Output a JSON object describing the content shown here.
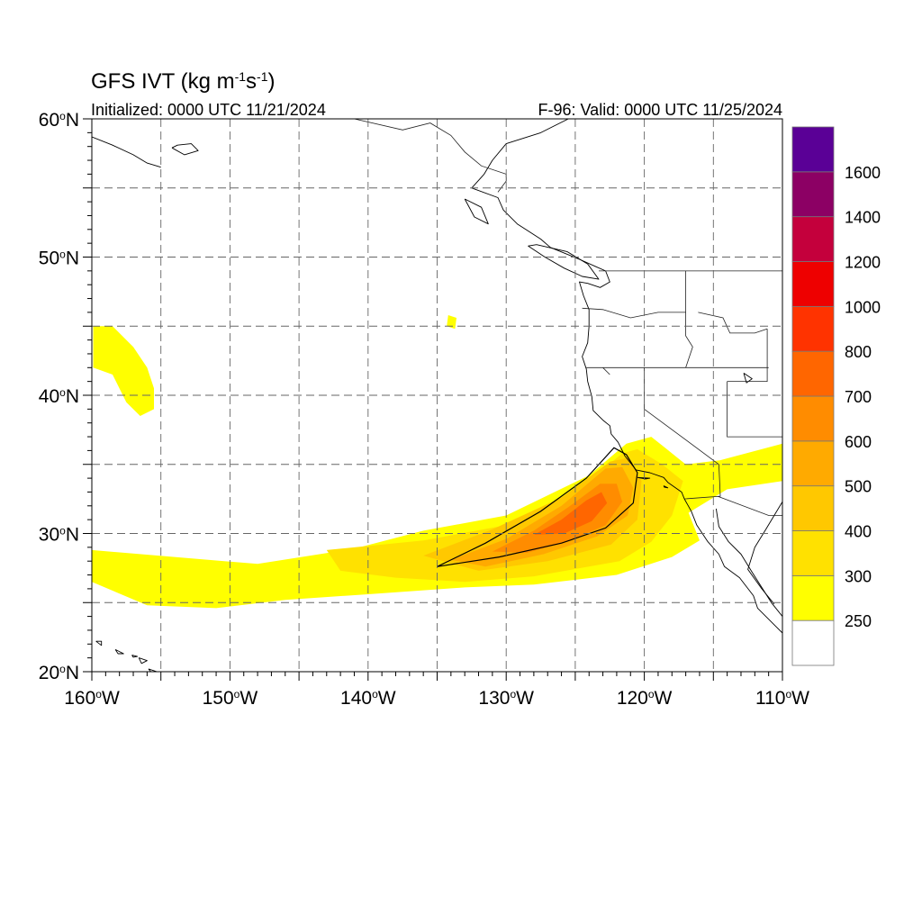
{
  "title": {
    "main": "GFS IVT (kg m",
    "sup1": "-1",
    "mid": "s",
    "sup2": "-1",
    "end": ")"
  },
  "subtitle_left": "Initialized: 0000 UTC 11/21/2024",
  "subtitle_right": "F-96: Valid: 0000 UTC 11/25/2024",
  "lat_ticks": [
    {
      "value": 60,
      "label": "60",
      "hemi": "N"
    },
    {
      "value": 50,
      "label": "50",
      "hemi": "N"
    },
    {
      "value": 40,
      "label": "40",
      "hemi": "N"
    },
    {
      "value": 30,
      "label": "30",
      "hemi": "N"
    },
    {
      "value": 20,
      "label": "20",
      "hemi": "N"
    }
  ],
  "lon_ticks": [
    {
      "value": -160,
      "label": "160",
      "hemi": "W"
    },
    {
      "value": -150,
      "label": "150",
      "hemi": "W"
    },
    {
      "value": -140,
      "label": "140",
      "hemi": "W"
    },
    {
      "value": -130,
      "label": "130",
      "hemi": "W"
    },
    {
      "value": -120,
      "label": "120",
      "hemi": "W"
    },
    {
      "value": -110,
      "label": "110",
      "hemi": "W"
    }
  ],
  "map_extent": {
    "lon_min": -160,
    "lon_max": -110,
    "lat_min": 20,
    "lat_max": 60
  },
  "colorbar": {
    "levels": [
      "250",
      "300",
      "400",
      "500",
      "600",
      "700",
      "800",
      "1000",
      "1200",
      "1400",
      "1600"
    ],
    "colors": [
      "#ffffff",
      "#ffff00",
      "#ffe100",
      "#ffc800",
      "#ffaa00",
      "#ff8c00",
      "#ff6600",
      "#ff3300",
      "#ee0000",
      "#c4003c",
      "#8c0064",
      "#5a0096"
    ]
  },
  "ivt_regions": [
    {
      "level": 1,
      "poly": [
        [
          -159.9,
          45
        ],
        [
          -158.5,
          45
        ],
        [
          -157,
          43.5
        ],
        [
          -156,
          42
        ],
        [
          -155.5,
          40.5
        ],
        [
          -155.5,
          39
        ],
        [
          -156.5,
          38.5
        ],
        [
          -157.5,
          39.5
        ],
        [
          -158.5,
          41.5
        ],
        [
          -159.9,
          42
        ]
      ]
    },
    {
      "level": 1,
      "poly": [
        [
          -134.2,
          45.8
        ],
        [
          -133.6,
          45.6
        ],
        [
          -133.7,
          44.8
        ],
        [
          -134.3,
          45
        ]
      ]
    },
    {
      "level": 1,
      "poly": [
        [
          -160,
          28.8
        ],
        [
          -154,
          28.3
        ],
        [
          -148,
          27.8
        ],
        [
          -141,
          28.9
        ],
        [
          -136,
          30.2
        ],
        [
          -130,
          31.3
        ],
        [
          -124,
          34.2
        ],
        [
          -121.3,
          36.5
        ],
        [
          -119.5,
          37
        ],
        [
          -118.5,
          36.2
        ],
        [
          -117,
          35
        ],
        [
          -114.5,
          35.3
        ],
        [
          -110,
          36.5
        ],
        [
          -110,
          33.8
        ],
        [
          -114,
          33.2
        ],
        [
          -116.8,
          31.5
        ],
        [
          -116,
          29.5
        ],
        [
          -118,
          28.3
        ],
        [
          -122,
          27
        ],
        [
          -128,
          26.3
        ],
        [
          -133,
          26.1
        ],
        [
          -140,
          25.6
        ],
        [
          -146,
          25.2
        ],
        [
          -151,
          24.6
        ],
        [
          -156,
          24.8
        ],
        [
          -160,
          26.5
        ]
      ]
    },
    {
      "level": 2,
      "poly": [
        [
          -143,
          28.8
        ],
        [
          -136,
          29.5
        ],
        [
          -130,
          30.6
        ],
        [
          -124.5,
          33.4
        ],
        [
          -121.6,
          35.8
        ],
        [
          -120.5,
          36.1
        ],
        [
          -118.7,
          35
        ],
        [
          -117.2,
          33.8
        ],
        [
          -118,
          31.3
        ],
        [
          -119.5,
          29.4
        ],
        [
          -121.8,
          28
        ],
        [
          -128,
          26.9
        ],
        [
          -133,
          26.5
        ],
        [
          -138,
          26.8
        ],
        [
          -142,
          27.3
        ]
      ]
    },
    {
      "level": 3,
      "poly": [
        [
          -136,
          28.4
        ],
        [
          -131,
          30.3
        ],
        [
          -126,
          32.6
        ],
        [
          -122.5,
          35.2
        ],
        [
          -121.1,
          35.5
        ],
        [
          -120.2,
          33.8
        ],
        [
          -120.5,
          31
        ],
        [
          -122.4,
          29.2
        ],
        [
          -127,
          28
        ],
        [
          -132,
          27.3
        ]
      ]
    },
    {
      "level": 4,
      "poly": [
        [
          -134,
          28.1
        ],
        [
          -130,
          29.6
        ],
        [
          -126,
          32
        ],
        [
          -122.8,
          34.7
        ],
        [
          -121.6,
          34.8
        ],
        [
          -120.8,
          33.3
        ],
        [
          -121.2,
          31.3
        ],
        [
          -123.4,
          29.8
        ],
        [
          -127.3,
          28.5
        ],
        [
          -131.5,
          27.6
        ]
      ]
    },
    {
      "level": 5,
      "poly": [
        [
          -131,
          28.7
        ],
        [
          -128,
          30.2
        ],
        [
          -125.5,
          31.9
        ],
        [
          -123.2,
          33.6
        ],
        [
          -122,
          33.6
        ],
        [
          -121.6,
          32.3
        ],
        [
          -122.8,
          30.6
        ],
        [
          -125.6,
          29.4
        ],
        [
          -128.5,
          28.6
        ]
      ]
    },
    {
      "level": 6,
      "poly": [
        [
          -128,
          29.9
        ],
        [
          -126,
          31
        ],
        [
          -124.2,
          32.4
        ],
        [
          -123.1,
          33
        ],
        [
          -122.7,
          32.2
        ],
        [
          -123.8,
          30.9
        ],
        [
          -125.8,
          30
        ]
      ]
    }
  ],
  "ivt_contour_500": [
    [
      -135,
      27.6
    ],
    [
      -131.5,
      29.3
    ],
    [
      -127.5,
      31.6
    ],
    [
      -124.2,
      34
    ],
    [
      -122.2,
      36.2
    ],
    [
      -121.3,
      35.7
    ],
    [
      -120.5,
      34.4
    ],
    [
      -120.8,
      32.2
    ],
    [
      -122.8,
      30.4
    ],
    [
      -126,
      29.3
    ],
    [
      -130.5,
      28.3
    ],
    [
      -135,
      27.6
    ]
  ],
  "coastlines": [
    [
      [
        -125.5,
        60
      ],
      [
        -127.5,
        59
      ],
      [
        -130,
        58.2
      ],
      [
        -131,
        57
      ],
      [
        -131.6,
        56
      ],
      [
        -132.5,
        55
      ],
      [
        -130.6,
        54.3
      ],
      [
        -130.2,
        53.4
      ],
      [
        -129.2,
        52.4
      ],
      [
        -127.5,
        51.3
      ],
      [
        -126.8,
        50.7
      ],
      [
        -124.6,
        49.8
      ],
      [
        -123.5,
        49.3
      ],
      [
        -122.8,
        49
      ],
      [
        -122.5,
        48.2
      ],
      [
        -123.2,
        47.8
      ],
      [
        -124.1,
        48.1
      ],
      [
        -124.7,
        48.2
      ],
      [
        -124.4,
        47.2
      ],
      [
        -124,
        46.2
      ],
      [
        -124,
        45
      ],
      [
        -124.1,
        43.8
      ],
      [
        -124.5,
        42.8
      ],
      [
        -124.2,
        41.9
      ],
      [
        -124.1,
        41
      ],
      [
        -123.8,
        39.9
      ],
      [
        -123.7,
        38.9
      ],
      [
        -123,
        38.2
      ],
      [
        -122.5,
        37.8
      ],
      [
        -122.4,
        37.2
      ],
      [
        -121.9,
        36.6
      ],
      [
        -121.4,
        35.6
      ],
      [
        -120.6,
        34.6
      ],
      [
        -119.6,
        34.4
      ],
      [
        -118.6,
        34.05
      ],
      [
        -118.3,
        33.7
      ],
      [
        -117.3,
        33.0
      ],
      [
        -117.1,
        32.5
      ],
      [
        -116.6,
        31.6
      ],
      [
        -116.2,
        30.6
      ],
      [
        -115.4,
        29.4
      ],
      [
        -114.6,
        28.5
      ],
      [
        -114.2,
        27.6
      ],
      [
        -113.1,
        26.8
      ],
      [
        -112.1,
        25.5
      ],
      [
        -111.8,
        24.6
      ],
      [
        -110.4,
        23.2
      ],
      [
        -110,
        22.8
      ]
    ],
    [
      [
        -114.8,
        31.8
      ],
      [
        -114.6,
        30.5
      ],
      [
        -113.9,
        29.4
      ],
      [
        -113,
        28.5
      ],
      [
        -112.2,
        27.2
      ],
      [
        -111.5,
        26.1
      ],
      [
        -110.8,
        25
      ],
      [
        -110,
        24
      ]
    ],
    [
      [
        -110,
        32.3
      ],
      [
        -111.2,
        30.3
      ],
      [
        -112,
        29
      ],
      [
        -112.5,
        27.4
      ],
      [
        -111.5,
        26
      ],
      [
        -110.6,
        24.9
      ]
    ],
    [
      [
        -160,
        58.7
      ],
      [
        -158.5,
        58.1
      ],
      [
        -157,
        57.4
      ],
      [
        -156,
        56.8
      ],
      [
        -155,
        56.5
      ]
    ],
    [
      [
        -154.2,
        57.9
      ],
      [
        -153.3,
        57.4
      ],
      [
        -152.3,
        57.7
      ],
      [
        -152.8,
        58.2
      ],
      [
        -153.8,
        58.1
      ],
      [
        -154.2,
        57.9
      ]
    ],
    [
      [
        -127.8,
        50.9
      ],
      [
        -125.6,
        50.4
      ],
      [
        -124.1,
        49.5
      ],
      [
        -123.3,
        48.4
      ],
      [
        -124.5,
        48.6
      ],
      [
        -125.8,
        49.2
      ],
      [
        -127.2,
        50
      ],
      [
        -128.4,
        50.8
      ],
      [
        -127.8,
        50.9
      ]
    ],
    [
      [
        -133,
        54.2
      ],
      [
        -131.8,
        53.6
      ],
      [
        -131.3,
        52.4
      ],
      [
        -132.3,
        52.9
      ],
      [
        -133,
        54.2
      ]
    ],
    [
      [
        -159.7,
        22.2
      ],
      [
        -159.3,
        22.2
      ],
      [
        -159.3,
        21.9
      ],
      [
        -159.7,
        22.2
      ]
    ],
    [
      [
        -158.3,
        21.6
      ],
      [
        -157.7,
        21.3
      ],
      [
        -158.1,
        21.3
      ],
      [
        -158.3,
        21.6
      ]
    ],
    [
      [
        -157.1,
        21.2
      ],
      [
        -156.7,
        21.1
      ],
      [
        -157,
        21.05
      ],
      [
        -157.1,
        21.2
      ]
    ],
    [
      [
        -156.6,
        21
      ],
      [
        -156,
        20.8
      ],
      [
        -156.4,
        20.6
      ],
      [
        -156.6,
        21
      ]
    ],
    [
      [
        -155.9,
        20.2
      ],
      [
        -155,
        19.9
      ],
      [
        -155.3,
        19.5
      ],
      [
        -155.9,
        20.2
      ]
    ],
    [
      [
        -120.5,
        34.05
      ],
      [
        -119.6,
        34.0
      ],
      [
        -119.9,
        33.95
      ],
      [
        -120.5,
        34.05
      ]
    ],
    [
      [
        -118.6,
        33.45
      ],
      [
        -118.3,
        33.3
      ],
      [
        -118.55,
        33.35
      ],
      [
        -118.6,
        33.45
      ]
    ],
    [
      [
        -112.8,
        41.6
      ],
      [
        -112.2,
        41.2
      ],
      [
        -112.6,
        40.9
      ],
      [
        -112.8,
        41.6
      ]
    ]
  ],
  "boundaries": [
    [
      [
        -123.3,
        49
      ],
      [
        -110,
        49
      ]
    ],
    [
      [
        -141,
        60
      ],
      [
        -137.5,
        59.2
      ],
      [
        -135.5,
        59.7
      ],
      [
        -134,
        58.8
      ],
      [
        -133,
        57.6
      ],
      [
        -131.8,
        56.6
      ],
      [
        -130,
        56
      ],
      [
        -130,
        55.5
      ],
      [
        -130.6,
        54.7
      ]
    ],
    [
      [
        -124.5,
        46.3
      ],
      [
        -123,
        46.2
      ],
      [
        -121,
        45.6
      ],
      [
        -119,
        46
      ],
      [
        -117,
        46
      ]
    ],
    [
      [
        -117,
        49
      ],
      [
        -117,
        44.3
      ],
      [
        -116.5,
        43.5
      ],
      [
        -117,
        42
      ]
    ],
    [
      [
        -124.2,
        42
      ],
      [
        -111,
        42
      ]
    ],
    [
      [
        -111.1,
        44.8
      ],
      [
        -111.1,
        41
      ],
      [
        -114,
        41
      ]
    ],
    [
      [
        -120,
        42
      ],
      [
        -120,
        39
      ],
      [
        -114.6,
        35
      ],
      [
        -114.5,
        32.7
      ],
      [
        -117.1,
        32.5
      ]
    ],
    [
      [
        -114,
        41
      ],
      [
        -114,
        37
      ],
      [
        -110,
        37
      ]
    ],
    [
      [
        -114.7,
        32.7
      ],
      [
        -111,
        31.3
      ],
      [
        -110,
        31.3
      ]
    ],
    [
      [
        -116.1,
        46
      ],
      [
        -114.3,
        45.6
      ],
      [
        -113.8,
        44.5
      ],
      [
        -112,
        44.5
      ],
      [
        -111.1,
        44.8
      ]
    ],
    [
      [
        -123,
        42
      ],
      [
        -122.5,
        41.5
      ]
    ]
  ]
}
